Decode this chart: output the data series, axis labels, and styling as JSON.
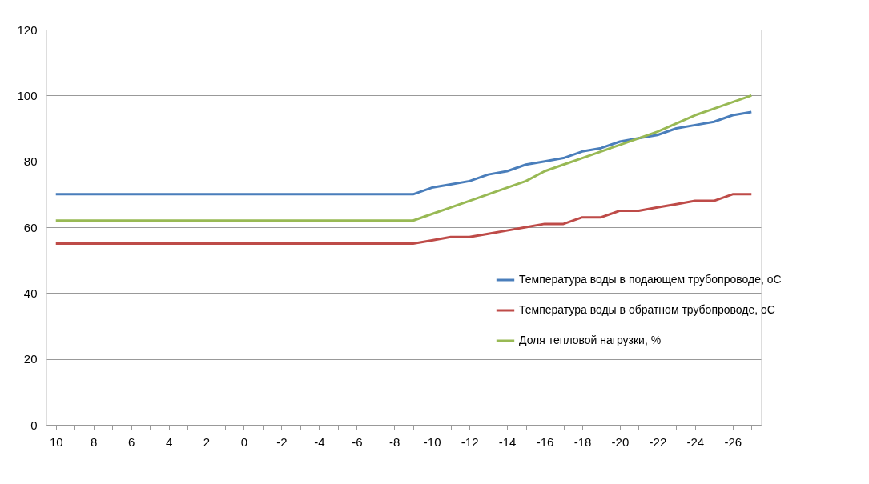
{
  "chart_data": {
    "type": "line",
    "categories": [
      "10",
      null,
      "8",
      null,
      "6",
      null,
      "4",
      null,
      "2",
      null,
      "0",
      null,
      "-2",
      null,
      "-4",
      null,
      "-6",
      null,
      "-8",
      null,
      "-10",
      null,
      "-12",
      null,
      "-14",
      null,
      "-16",
      null,
      "-18",
      null,
      "-20",
      null,
      "-22",
      null,
      "-24",
      null,
      "-26",
      null
    ],
    "series": [
      {
        "name": "Температура воды в подающем трубопроводе, оС",
        "color": "#4a7ebb",
        "values": [
          70,
          70,
          70,
          70,
          70,
          70,
          70,
          70,
          70,
          70,
          70,
          70,
          70,
          70,
          70,
          70,
          70,
          70,
          70,
          70,
          72,
          73,
          74,
          76,
          77,
          79,
          80,
          81,
          83,
          84,
          86,
          87,
          88,
          90,
          91,
          92,
          94,
          95
        ]
      },
      {
        "name": "Температура воды в обратном трубопроводе, оС",
        "color": "#be4b48",
        "values": [
          55,
          55,
          55,
          55,
          55,
          55,
          55,
          55,
          55,
          55,
          55,
          55,
          55,
          55,
          55,
          55,
          55,
          55,
          55,
          55,
          56,
          57,
          57,
          58,
          59,
          60,
          61,
          61,
          63,
          63,
          65,
          65,
          66,
          67,
          68,
          68,
          70,
          70
        ]
      },
      {
        "name": "Доля тепловой нагрузки, %",
        "color": "#98b954",
        "values": [
          62,
          62,
          62,
          62,
          62,
          62,
          62,
          62,
          62,
          62,
          62,
          62,
          62,
          62,
          62,
          62,
          62,
          62,
          62,
          62,
          64,
          66,
          68,
          70,
          72,
          74,
          77,
          79,
          81,
          83,
          85,
          87,
          89,
          91.5,
          94,
          96,
          98,
          100
        ]
      }
    ],
    "ylim": [
      0,
      120
    ],
    "yticks": [
      0,
      20,
      40,
      60,
      80,
      100,
      120
    ],
    "grid": "y",
    "legend": "right",
    "marker": "none",
    "line_style": "solid"
  }
}
